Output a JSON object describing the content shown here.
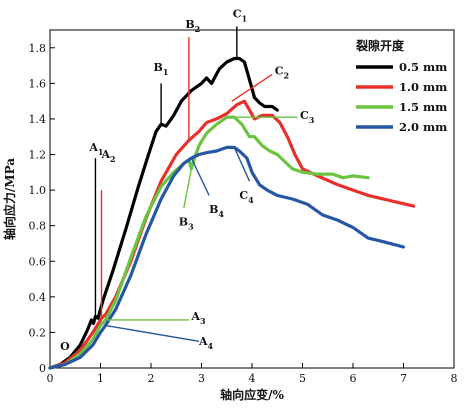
{
  "chart_data": {
    "type": "line",
    "xlabel": "轴向应变/%",
    "ylabel": "轴向应力/MPa",
    "xlim": [
      0,
      8
    ],
    "ylim": [
      0,
      1.9
    ],
    "xticks": [
      "0",
      "1",
      "2",
      "3",
      "4",
      "5",
      "6",
      "7",
      "8"
    ],
    "yticks": [
      "0",
      "0.2",
      "0.4",
      "0.6",
      "0.8",
      "1.0",
      "1.2",
      "1.4",
      "1.6",
      "1.8"
    ],
    "legend_title": "裂隙开度",
    "legend_position": "top-right",
    "series": [
      {
        "name": "0.5 mm",
        "color": "#000000",
        "points": [
          [
            0,
            0
          ],
          [
            0.2,
            0.02
          ],
          [
            0.4,
            0.06
          ],
          [
            0.6,
            0.13
          ],
          [
            0.75,
            0.22
          ],
          [
            0.82,
            0.27
          ],
          [
            0.86,
            0.25
          ],
          [
            0.9,
            0.29
          ],
          [
            0.95,
            0.28
          ],
          [
            1.05,
            0.38
          ],
          [
            1.25,
            0.55
          ],
          [
            1.5,
            0.78
          ],
          [
            1.75,
            1.02
          ],
          [
            1.95,
            1.2
          ],
          [
            2.1,
            1.33
          ],
          [
            2.2,
            1.37
          ],
          [
            2.3,
            1.36
          ],
          [
            2.45,
            1.42
          ],
          [
            2.6,
            1.5
          ],
          [
            2.8,
            1.56
          ],
          [
            3.0,
            1.6
          ],
          [
            3.1,
            1.63
          ],
          [
            3.2,
            1.6
          ],
          [
            3.35,
            1.68
          ],
          [
            3.5,
            1.72
          ],
          [
            3.65,
            1.74
          ],
          [
            3.75,
            1.74
          ],
          [
            3.85,
            1.72
          ],
          [
            3.95,
            1.62
          ],
          [
            4.05,
            1.52
          ],
          [
            4.15,
            1.49
          ],
          [
            4.25,
            1.47
          ],
          [
            4.4,
            1.47
          ],
          [
            4.5,
            1.45
          ]
        ]
      },
      {
        "name": "1.0 mm",
        "color": "#e8302a",
        "points": [
          [
            0,
            0
          ],
          [
            0.3,
            0.03
          ],
          [
            0.6,
            0.1
          ],
          [
            0.85,
            0.2
          ],
          [
            0.98,
            0.26
          ],
          [
            1.02,
            0.28
          ],
          [
            1.1,
            0.3
          ],
          [
            1.3,
            0.4
          ],
          [
            1.6,
            0.6
          ],
          [
            1.9,
            0.84
          ],
          [
            2.2,
            1.05
          ],
          [
            2.5,
            1.2
          ],
          [
            2.75,
            1.28
          ],
          [
            2.95,
            1.33
          ],
          [
            3.1,
            1.38
          ],
          [
            3.3,
            1.4
          ],
          [
            3.5,
            1.43
          ],
          [
            3.7,
            1.48
          ],
          [
            3.85,
            1.5
          ],
          [
            3.95,
            1.45
          ],
          [
            4.05,
            1.4
          ],
          [
            4.2,
            1.42
          ],
          [
            4.4,
            1.42
          ],
          [
            4.55,
            1.38
          ],
          [
            4.7,
            1.3
          ],
          [
            4.85,
            1.2
          ],
          [
            5.0,
            1.12
          ],
          [
            5.3,
            1.08
          ],
          [
            5.7,
            1.03
          ],
          [
            6.0,
            1.0
          ],
          [
            6.3,
            0.97
          ],
          [
            6.6,
            0.95
          ],
          [
            6.9,
            0.93
          ],
          [
            7.2,
            0.91
          ]
        ]
      },
      {
        "name": "1.5 mm",
        "color": "#6ac43f",
        "points": [
          [
            0,
            0
          ],
          [
            0.3,
            0.02
          ],
          [
            0.6,
            0.08
          ],
          [
            0.85,
            0.16
          ],
          [
            1.0,
            0.24
          ],
          [
            1.1,
            0.27
          ],
          [
            1.3,
            0.38
          ],
          [
            1.6,
            0.62
          ],
          [
            1.9,
            0.85
          ],
          [
            2.2,
            1.02
          ],
          [
            2.45,
            1.1
          ],
          [
            2.65,
            1.15
          ],
          [
            2.75,
            1.17
          ],
          [
            2.8,
            1.12
          ],
          [
            2.85,
            1.17
          ],
          [
            2.95,
            1.25
          ],
          [
            3.1,
            1.32
          ],
          [
            3.3,
            1.37
          ],
          [
            3.5,
            1.41
          ],
          [
            3.65,
            1.41
          ],
          [
            3.8,
            1.37
          ],
          [
            3.95,
            1.3
          ],
          [
            4.05,
            1.3
          ],
          [
            4.2,
            1.25
          ],
          [
            4.35,
            1.22
          ],
          [
            4.5,
            1.2
          ],
          [
            4.65,
            1.16
          ],
          [
            4.8,
            1.12
          ],
          [
            5.0,
            1.1
          ],
          [
            5.3,
            1.09
          ],
          [
            5.6,
            1.09
          ],
          [
            5.8,
            1.07
          ],
          [
            6.0,
            1.08
          ],
          [
            6.3,
            1.07
          ]
        ]
      },
      {
        "name": "2.0 mm",
        "color": "#2756a4",
        "points": [
          [
            0,
            0
          ],
          [
            0.3,
            0.02
          ],
          [
            0.6,
            0.06
          ],
          [
            0.85,
            0.13
          ],
          [
            1.0,
            0.2
          ],
          [
            1.1,
            0.24
          ],
          [
            1.3,
            0.33
          ],
          [
            1.6,
            0.52
          ],
          [
            1.9,
            0.75
          ],
          [
            2.2,
            0.95
          ],
          [
            2.45,
            1.08
          ],
          [
            2.65,
            1.15
          ],
          [
            2.8,
            1.18
          ],
          [
            2.95,
            1.2
          ],
          [
            3.1,
            1.21
          ],
          [
            3.3,
            1.22
          ],
          [
            3.5,
            1.24
          ],
          [
            3.65,
            1.24
          ],
          [
            3.75,
            1.22
          ],
          [
            3.9,
            1.18
          ],
          [
            4.0,
            1.1
          ],
          [
            4.15,
            1.03
          ],
          [
            4.3,
            1.0
          ],
          [
            4.5,
            0.97
          ],
          [
            4.8,
            0.95
          ],
          [
            5.1,
            0.92
          ],
          [
            5.4,
            0.86
          ],
          [
            5.7,
            0.83
          ],
          [
            6.0,
            0.79
          ],
          [
            6.3,
            0.73
          ],
          [
            6.6,
            0.71
          ],
          [
            7.0,
            0.68
          ]
        ]
      }
    ],
    "annotations": [
      {
        "label": "O",
        "sub": "",
        "color": "#000000",
        "text_at": [
          0.2,
          0.1
        ]
      },
      {
        "label": "A",
        "sub": "1",
        "color": "#000000",
        "line": [
          [
            0.9,
            0.28
          ],
          [
            0.9,
            1.18
          ]
        ],
        "text_at": [
          0.78,
          1.22
        ]
      },
      {
        "label": "A",
        "sub": "2",
        "color": "#e8302a",
        "line": [
          [
            1.02,
            0.28
          ],
          [
            1.02,
            1.0
          ]
        ],
        "text_at": [
          1.02,
          1.18
        ]
      },
      {
        "label": "A",
        "sub": "3",
        "color": "#6ac43f",
        "line": [
          [
            1.08,
            0.27
          ],
          [
            2.75,
            0.27
          ]
        ],
        "text_at": [
          2.8,
          0.27
        ]
      },
      {
        "label": "A",
        "sub": "4",
        "color": "#2756a4",
        "line": [
          [
            1.08,
            0.24
          ],
          [
            2.95,
            0.15
          ]
        ],
        "text_at": [
          2.95,
          0.13
        ]
      },
      {
        "label": "B",
        "sub": "1",
        "color": "#000000",
        "line": [
          [
            2.2,
            1.37
          ],
          [
            2.2,
            1.6
          ]
        ],
        "text_at": [
          2.05,
          1.67
        ]
      },
      {
        "label": "B",
        "sub": "2",
        "color": "#e8302a",
        "line": [
          [
            2.75,
            1.28
          ],
          [
            2.75,
            1.86
          ]
        ],
        "text_at": [
          2.68,
          1.91
        ]
      },
      {
        "label": "B",
        "sub": "3",
        "color": "#6ac43f",
        "line": [
          [
            2.8,
            1.12
          ],
          [
            2.65,
            0.9
          ]
        ],
        "text_at": [
          2.55,
          0.8
        ]
      },
      {
        "label": "B",
        "sub": "4",
        "color": "#2756a4",
        "line": [
          [
            2.8,
            1.18
          ],
          [
            3.15,
            0.97
          ]
        ],
        "text_at": [
          3.15,
          0.87
        ]
      },
      {
        "label": "C",
        "sub": "1",
        "color": "#000000",
        "line": [
          [
            3.7,
            1.74
          ],
          [
            3.7,
            1.92
          ]
        ],
        "text_at": [
          3.62,
          1.97
        ]
      },
      {
        "label": "C",
        "sub": "2",
        "color": "#e8302a",
        "line": [
          [
            3.6,
            1.5
          ],
          [
            4.4,
            1.65
          ]
        ],
        "text_at": [
          4.45,
          1.65
        ]
      },
      {
        "label": "C",
        "sub": "3",
        "color": "#6ac43f",
        "line": [
          [
            3.6,
            1.41
          ],
          [
            4.9,
            1.41
          ]
        ],
        "text_at": [
          4.95,
          1.4
        ]
      },
      {
        "label": "C",
        "sub": "4",
        "color": "#2756a4",
        "line": [
          [
            3.65,
            1.24
          ],
          [
            3.95,
            1.05
          ]
        ],
        "text_at": [
          3.75,
          0.95
        ]
      }
    ]
  }
}
